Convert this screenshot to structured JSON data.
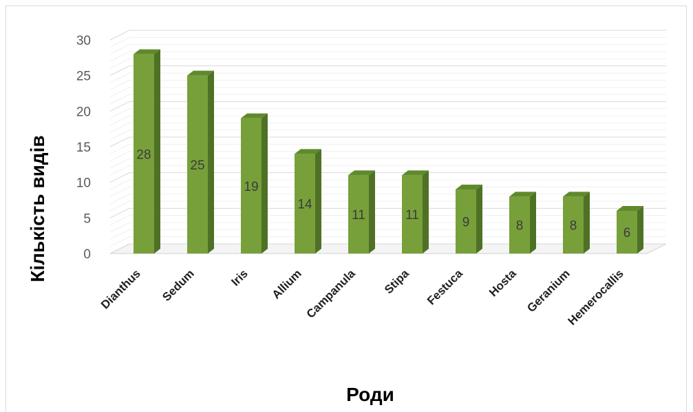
{
  "chart_data": {
    "type": "bar",
    "style": "3d-column",
    "title": "",
    "xlabel": "Роди",
    "ylabel": "Кількість видів",
    "categories": [
      "Dianthus",
      "Sedum",
      "Iris",
      "Allium",
      "Campanula",
      "Stipa",
      "Festuca",
      "Hosta",
      "Geranium",
      "Hemerocallis"
    ],
    "values": [
      28,
      25,
      19,
      14,
      11,
      11,
      9,
      8,
      8,
      6
    ],
    "data_labels": [
      "28",
      "25",
      "19",
      "14",
      "11",
      "11",
      "9",
      "8",
      "8",
      "6"
    ],
    "ylim": [
      0,
      30
    ],
    "yticks": [
      "0",
      "5",
      "10",
      "15",
      "20",
      "25",
      "30"
    ],
    "grid": true,
    "legend": "none",
    "colors": {
      "bar_front": "#77a03a",
      "bar_side": "#4f7126",
      "bar_top": "#5f8a2c",
      "gridline": "#e3e3e3",
      "floor": "#d0d0d0"
    }
  }
}
